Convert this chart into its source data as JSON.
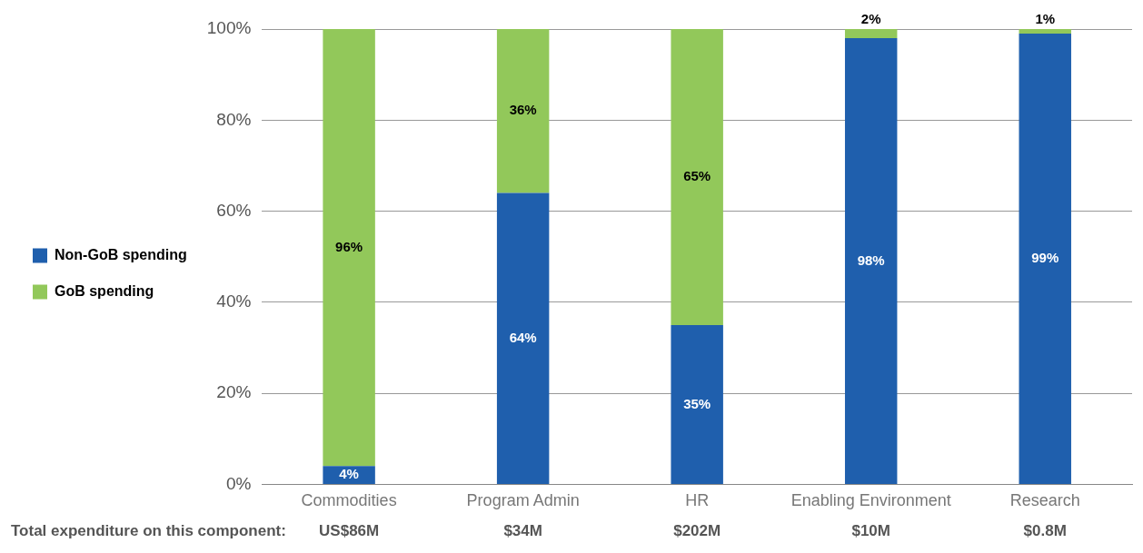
{
  "chart_data": {
    "type": "bar",
    "stacked": true,
    "categories": [
      "Commodities",
      "Program Admin",
      "HR",
      "Enabling Environment",
      "Research"
    ],
    "series": [
      {
        "name": "Non-GoB spending",
        "color": "#1f5fad",
        "values": [
          4,
          64,
          35,
          98,
          99
        ],
        "value_labels": [
          "4%",
          "64%",
          "35%",
          "98%",
          "99%"
        ]
      },
      {
        "name": "GoB spending",
        "color": "#92c85a",
        "values": [
          96,
          36,
          65,
          2,
          1
        ],
        "value_labels": [
          "96%",
          "36%",
          "65%",
          "2%",
          "1%"
        ]
      }
    ],
    "ylim": [
      0,
      100
    ],
    "yticks": [
      {
        "value": 0,
        "label": "0%"
      },
      {
        "value": 20,
        "label": "20%"
      },
      {
        "value": 40,
        "label": "40%"
      },
      {
        "value": 60,
        "label": "60%"
      },
      {
        "value": 80,
        "label": "80%"
      },
      {
        "value": 100,
        "label": "100%"
      }
    ],
    "grid": "y",
    "legend": "left",
    "annotations": [
      "Total expenditure on this component:",
      "US$86M",
      "$34M",
      "$202M",
      "$10M",
      "$0.8M"
    ]
  }
}
